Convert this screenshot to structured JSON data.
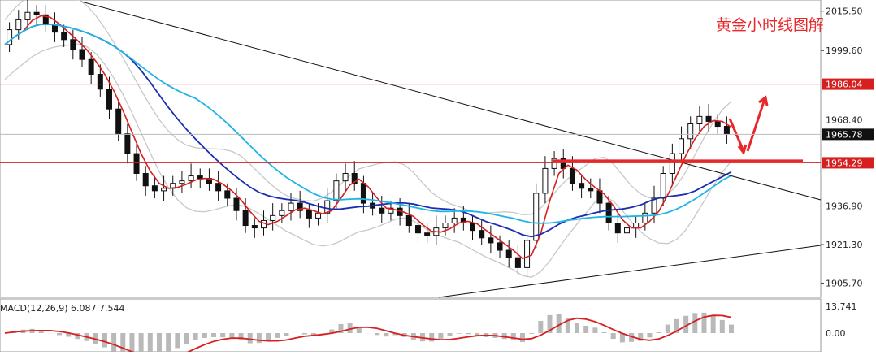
{
  "colors": {
    "background": "#ffffff",
    "candle": "#111111",
    "ma_fast": "#d61f1f",
    "ma_mid": "#1a2fb0",
    "ma_slow": "#1fb4e6",
    "bands": "#c8c8c8",
    "hline": "#d61f1f",
    "trendline": "#111111",
    "support_bar": "#e8272b",
    "arrow": "#e8272b",
    "macd_hist": "#b9b9b9",
    "macd_signal": "#d61f1f",
    "title": "#e8272b",
    "price_tag_red": "#d61f1f",
    "price_tag_current": "#111111"
  },
  "chart_data": {
    "type": "candlestick",
    "title": "黄金小时线图解",
    "y_axis_ticks": [
      "2015.50",
      "1999.60",
      "1936.90",
      "1921.30",
      "1905.70"
    ],
    "ylim": [
      1900,
      2020
    ],
    "price_tags": [
      {
        "label": "1986.04",
        "style": "red"
      },
      {
        "label": "1965.78",
        "style": "current"
      },
      {
        "label": "1954.29",
        "style": "red"
      }
    ],
    "partially_visible_tick": "1968.40",
    "horizontal_lines": [
      1986.04,
      1954.29
    ],
    "macd": {
      "label": "MACD(12,26,9) 6.087 7.544",
      "ticks": [
        "13.741",
        "0.00"
      ]
    },
    "price_points": [
      2002,
      2008,
      2012,
      2015,
      2014,
      2010,
      2007,
      2004,
      2000,
      1996,
      1990,
      1984,
      1976,
      1966,
      1958,
      1950,
      1945,
      1943,
      1944,
      1946,
      1947,
      1949,
      1948,
      1946,
      1943,
      1940,
      1935,
      1929,
      1928,
      1931,
      1933,
      1935,
      1938,
      1935,
      1932,
      1934,
      1939,
      1947,
      1950,
      1946,
      1938,
      1936,
      1934,
      1936,
      1933,
      1929,
      1926,
      1925,
      1928,
      1930,
      1932,
      1930,
      1927,
      1924,
      1922,
      1919,
      1916,
      1912,
      1923,
      1942,
      1952,
      1956,
      1952,
      1946,
      1944,
      1943,
      1938,
      1930,
      1926,
      1928,
      1930,
      1934,
      1940,
      1950,
      1958,
      1964,
      1970,
      1973,
      1971,
      1969,
      1966
    ]
  }
}
